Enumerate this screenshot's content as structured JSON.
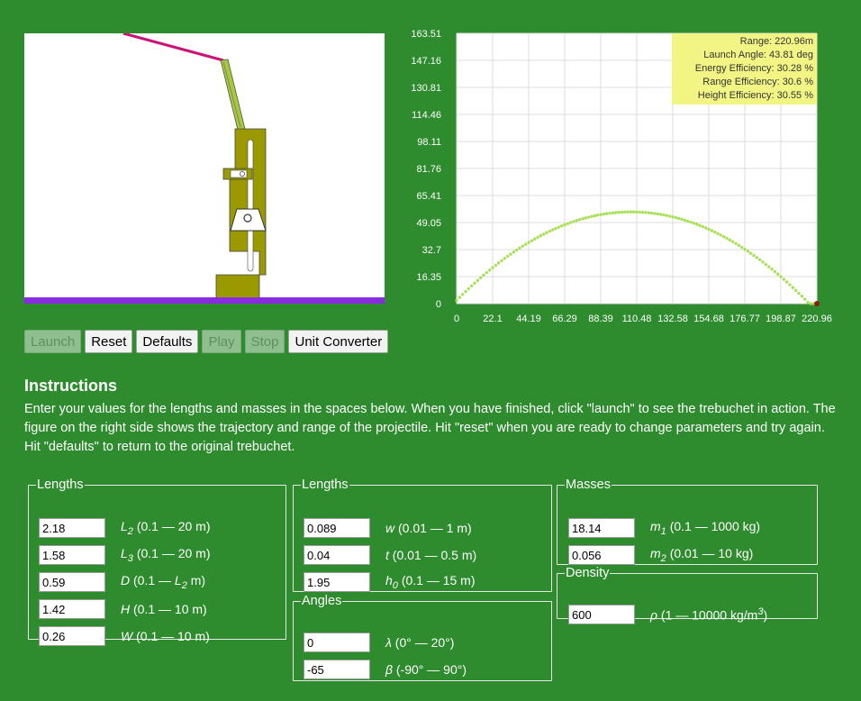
{
  "toolbar": {
    "launch_label": "Launch",
    "reset_label": "Reset",
    "defaults_label": "Defaults",
    "play_label": "Play",
    "stop_label": "Stop",
    "converter_label": "Unit Converter"
  },
  "instructions": {
    "title": "Instructions",
    "text": "Enter your values for the lengths and masses in the spaces below. When you have finished, click \"launch\" to see the trebuchet in action. The figure on the right side shows the trajectory and range of the projectile. Hit \"reset\" when you are ready to change parameters and try again. Hit \"defaults\" to return to the original trebuchet."
  },
  "lengths1": {
    "legend": "Lengths",
    "L2": {
      "value": "2.18",
      "sym": "L",
      "sub": "2",
      "range": "(0.1 — 20 m)"
    },
    "L3": {
      "value": "1.58",
      "sym": "L",
      "sub": "3",
      "range": "(0.1 — 20 m)"
    },
    "D": {
      "value": "0.59",
      "sym": "D",
      "range_pre": "(0.1 — ",
      "range_sym": "L",
      "range_sub": "2",
      "range_post": " m)"
    },
    "H": {
      "value": "1.42",
      "sym": "H",
      "range": "(0.1 — 10 m)"
    },
    "W": {
      "value": "0.26",
      "sym": "W",
      "range": "(0.1 — 10 m)"
    }
  },
  "lengths2": {
    "legend": "Lengths",
    "w": {
      "value": "0.089",
      "sym": "w",
      "range": "(0.01 — 1 m)"
    },
    "t": {
      "value": "0.04",
      "sym": "t",
      "range": "(0.01 — 0.5 m)"
    },
    "h0": {
      "value": "1.95",
      "sym": "h",
      "sub": "0",
      "range": "(0.1 — 15 m)"
    }
  },
  "angles": {
    "legend": "Angles",
    "lambda": {
      "value": "0",
      "sym": "λ",
      "range": "(0° — 20°)"
    },
    "beta": {
      "value": "-65",
      "sym": "β",
      "range": "(-90° — 90°)"
    }
  },
  "masses": {
    "legend": "Masses",
    "m1": {
      "value": "18.14",
      "sym": "m",
      "sub": "1",
      "range": "(0.1 — 1000 kg)"
    },
    "m2": {
      "value": "0.056",
      "sym": "m",
      "sub": "2",
      "range": "(0.01 — 10 kg)"
    }
  },
  "density": {
    "legend": "Density",
    "rho": {
      "value": "600",
      "sym": "ρ",
      "range_pre": "(1 — 10000 kg/m",
      "range_sup": "3",
      "range_post": ")"
    }
  },
  "colors": {
    "background": "#2e8b2e",
    "trajectory": "#a8e05a",
    "info_box": "#f2f584",
    "frame": "#9a9a00",
    "arm": "#a6c83a",
    "sling": "#cc1177",
    "ground": "#8a2be2"
  },
  "chart_data": {
    "type": "scatter",
    "x_ticks": [
      "0",
      "22.1",
      "44.19",
      "66.29",
      "88.39",
      "110.48",
      "132.58",
      "154.68",
      "176.77",
      "198.87",
      "220.96"
    ],
    "y_ticks": [
      "0",
      "16.35",
      "32.7",
      "49.05",
      "65.41",
      "81.76",
      "98.11",
      "114.46",
      "130.81",
      "147.16",
      "163.51"
    ],
    "xlim": [
      0,
      220.96
    ],
    "ylim": [
      0,
      163.51
    ],
    "range": 220.96,
    "apex_height": 55.5,
    "launch_height": 1.95,
    "info": [
      "Range: 220.96m",
      "Launch Angle: 43.81 deg",
      "Energy Efficiency: 30.28 %",
      "Range Efficiency: 30.6 %",
      "Height Efficiency: 30.55 %"
    ],
    "grid": true
  }
}
